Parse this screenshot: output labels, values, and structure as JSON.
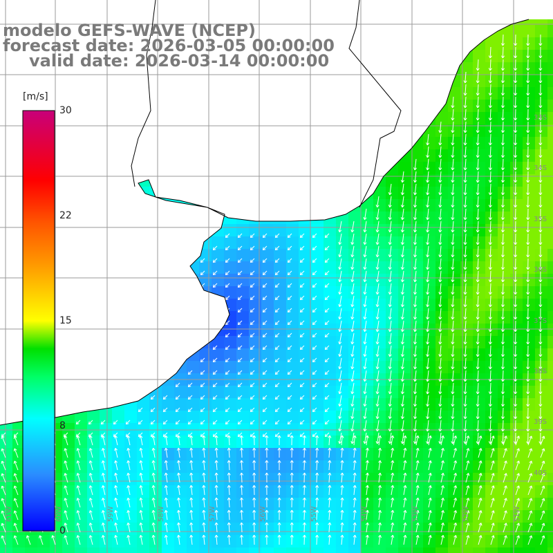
{
  "header": {
    "model_line": "modelo GEFS-WAVE (NCEP)",
    "forecast_line": "forecast date: 2026-03-05 00:00:00",
    "valid_line": "valid date: 2026-03-14 00:00:00"
  },
  "colorbar": {
    "unit": "[m/s]",
    "min": 0,
    "max": 30,
    "ticks": [
      "30",
      "22",
      "15",
      "8",
      "0"
    ],
    "tick_values": [
      30,
      22,
      15,
      8,
      0
    ],
    "gradient_stops": [
      {
        "v": 0,
        "color": "#0000ff"
      },
      {
        "v": 4,
        "color": "#2a8cff"
      },
      {
        "v": 8,
        "color": "#00ffff"
      },
      {
        "v": 11,
        "color": "#00ff66"
      },
      {
        "v": 13,
        "color": "#00e000"
      },
      {
        "v": 15,
        "color": "#ffff00"
      },
      {
        "v": 19,
        "color": "#ff9900"
      },
      {
        "v": 22,
        "color": "#ff5500"
      },
      {
        "v": 25,
        "color": "#ff0000"
      },
      {
        "v": 30,
        "color": "#c8007a"
      }
    ]
  },
  "map": {
    "field": "wind speed",
    "arrow_color": "#ffffff",
    "land_color": "#ffffff",
    "coast_color": "#000000",
    "grid_color": "#9a9a9a",
    "longitude_labels": [
      "61W",
      "60W",
      "59W",
      "58W",
      "57W",
      "56W",
      "55W",
      "54W",
      "53W",
      "52W",
      "51W"
    ],
    "latitude_labels": [
      "33S",
      "34S",
      "35S",
      "36S",
      "37S",
      "38S",
      "39S",
      "40S"
    ]
  }
}
